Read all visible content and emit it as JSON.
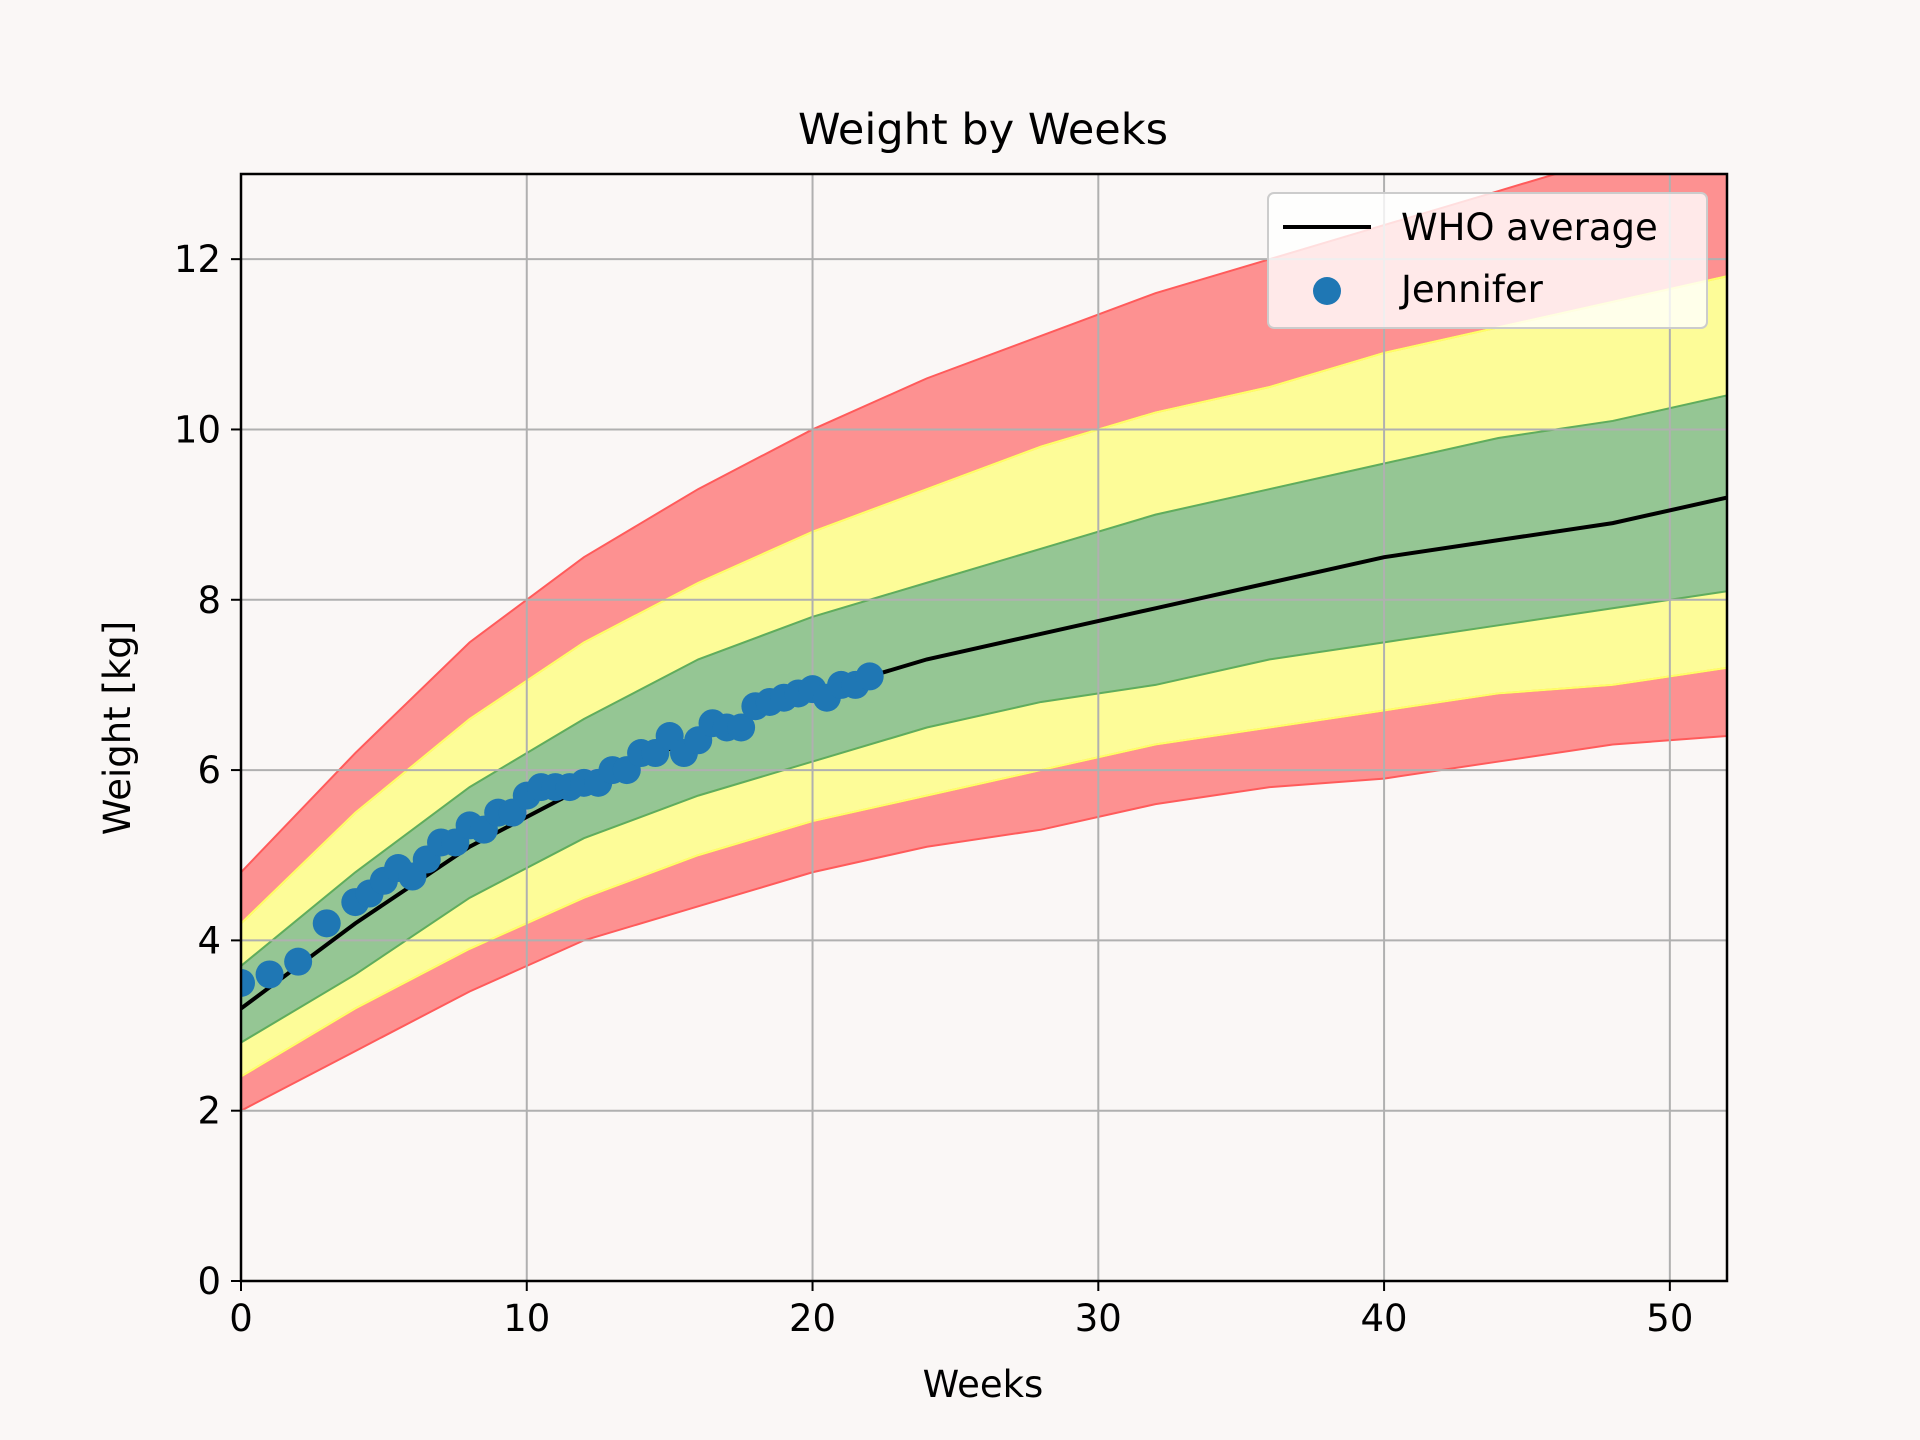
{
  "chart_data": {
    "type": "line",
    "title": "Weight by Weeks",
    "xlabel": "Weeks",
    "ylabel": "Weight [kg]",
    "xlim": [
      0,
      52
    ],
    "ylim": [
      0,
      13
    ],
    "xticks": [
      0,
      10,
      20,
      30,
      40,
      50
    ],
    "yticks": [
      0,
      2,
      4,
      6,
      8,
      10,
      12
    ],
    "grid": true,
    "legend_position": "top-right",
    "band_x": [
      0,
      4,
      8,
      12,
      16,
      20,
      24,
      28,
      32,
      36,
      40,
      44,
      48,
      52
    ],
    "bands": {
      "p3": [
        2.0,
        2.7,
        3.4,
        4.0,
        4.4,
        4.8,
        5.1,
        5.3,
        5.6,
        5.8,
        5.9,
        6.1,
        6.3,
        6.4
      ],
      "p10": [
        2.4,
        3.2,
        3.9,
        4.5,
        5.0,
        5.4,
        5.7,
        6.0,
        6.3,
        6.5,
        6.7,
        6.9,
        7.0,
        7.2
      ],
      "p25": [
        2.8,
        3.6,
        4.5,
        5.2,
        5.7,
        6.1,
        6.5,
        6.8,
        7.0,
        7.3,
        7.5,
        7.7,
        7.9,
        8.1
      ],
      "p75": [
        3.7,
        4.8,
        5.8,
        6.6,
        7.3,
        7.8,
        8.2,
        8.6,
        9.0,
        9.3,
        9.6,
        9.9,
        10.1,
        10.4
      ],
      "p90": [
        4.2,
        5.5,
        6.6,
        7.5,
        8.2,
        8.8,
        9.3,
        9.8,
        10.2,
        10.5,
        10.9,
        11.2,
        11.5,
        11.8
      ],
      "p97": [
        4.8,
        6.2,
        7.5,
        8.5,
        9.3,
        10.0,
        10.6,
        11.1,
        11.6,
        12.0,
        12.4,
        12.8,
        13.2,
        13.5
      ]
    },
    "band_colors": {
      "outer": "#ff5b5b",
      "middle": "#ffff66",
      "inner": "#5fac5f"
    },
    "series": [
      {
        "name": "WHO average",
        "color": "#000000",
        "style": "line",
        "x": [
          0,
          4,
          8,
          12,
          16,
          20,
          24,
          28,
          32,
          36,
          40,
          44,
          48,
          52
        ],
        "y": [
          3.2,
          4.2,
          5.1,
          5.8,
          6.4,
          6.9,
          7.3,
          7.6,
          7.9,
          8.2,
          8.5,
          8.7,
          8.9,
          9.2
        ]
      },
      {
        "name": "Jennifer",
        "color": "#1f77b4",
        "style": "scatter",
        "x": [
          0,
          1,
          2,
          3,
          4,
          4.5,
          5,
          5.5,
          6,
          6.5,
          7,
          7.5,
          8,
          8.5,
          9,
          9.5,
          10,
          10.5,
          11,
          11.5,
          12,
          12.5,
          13,
          13.5,
          14,
          14.5,
          15,
          15.5,
          16,
          16.5,
          17,
          17.5,
          18,
          18.5,
          19,
          19.5,
          20,
          20.5,
          21,
          21.5,
          22
        ],
        "y": [
          3.5,
          3.6,
          3.75,
          4.2,
          4.45,
          4.55,
          4.7,
          4.85,
          4.75,
          4.95,
          5.15,
          5.15,
          5.35,
          5.3,
          5.5,
          5.5,
          5.7,
          5.8,
          5.8,
          5.8,
          5.85,
          5.85,
          6.0,
          6.0,
          6.2,
          6.2,
          6.4,
          6.2,
          6.35,
          6.55,
          6.5,
          6.5,
          6.75,
          6.8,
          6.85,
          6.9,
          6.95,
          6.85,
          7.0,
          7.0,
          7.1
        ]
      }
    ]
  }
}
